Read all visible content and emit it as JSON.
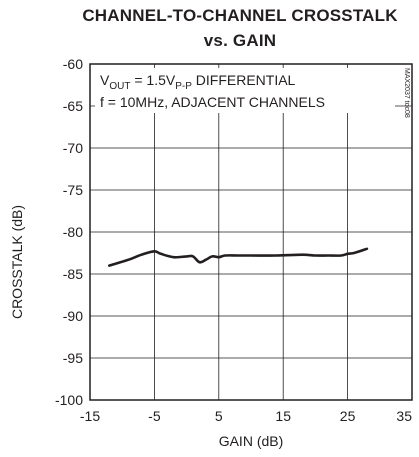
{
  "chart_data": {
    "type": "line",
    "title": "CHANNEL-TO-CHANNEL CROSSTALK",
    "subtitle": "vs. GAIN",
    "xlabel": "GAIN (dB)",
    "ylabel": "CROSSTALK (dB)",
    "xlim": [
      -15,
      35
    ],
    "ylim": [
      -100,
      -60
    ],
    "x_ticks": [
      "-15",
      "-5",
      "5",
      "15",
      "25",
      "35"
    ],
    "y_ticks": [
      "-60",
      "-65",
      "-70",
      "-75",
      "-80",
      "-85",
      "-90",
      "-95",
      "-100"
    ],
    "grid": true,
    "annotations": {
      "line1_prefix": "V",
      "line1_sub1": "OUT",
      "line1_mid": " = 1.5V",
      "line1_sub2": "P-P",
      "line1_suffix": " DIFFERENTIAL",
      "line2": "f = 10MHz, ADJACENT CHANNELS",
      "watermark": "MAX2037 toc08"
    },
    "series": [
      {
        "name": "",
        "x": [
          -12,
          -9,
          -7,
          -5,
          -4,
          -2,
          0,
          1,
          2,
          3,
          4,
          5,
          6,
          8,
          10,
          14,
          18,
          20,
          22,
          24,
          25,
          26,
          28
        ],
        "y": [
          -84.0,
          -83.3,
          -82.7,
          -82.3,
          -82.6,
          -83.0,
          -82.9,
          -82.9,
          -83.6,
          -83.3,
          -82.9,
          -83.0,
          -82.8,
          -82.8,
          -82.8,
          -82.8,
          -82.7,
          -82.8,
          -82.8,
          -82.8,
          -82.6,
          -82.5,
          -82.0
        ]
      }
    ],
    "line_color": "#231f20"
  }
}
